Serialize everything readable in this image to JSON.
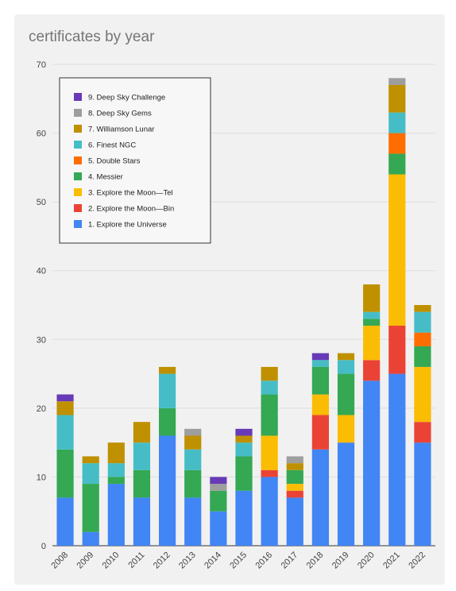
{
  "chart_data": {
    "type": "bar",
    "stacked": true,
    "title": "certificates by year",
    "xlabel": "",
    "ylabel": "",
    "ylim": [
      0,
      70
    ],
    "yticks": [
      0,
      10,
      20,
      30,
      40,
      50,
      60,
      70
    ],
    "grid": true,
    "legend_position": "top-left",
    "categories": [
      "2008",
      "2009",
      "2010",
      "2011",
      "2012",
      "2013",
      "2014",
      "2015",
      "2016",
      "2017",
      "2018",
      "2019",
      "2020",
      "2021",
      "2022"
    ],
    "series": [
      {
        "name": "1. Explore the Universe",
        "color": "#4285f4",
        "values": [
          7,
          2,
          9,
          7,
          16,
          7,
          5,
          8,
          10,
          7,
          14,
          15,
          24,
          25,
          15
        ]
      },
      {
        "name": "2. Explore the Moon—Bin",
        "color": "#ea4335",
        "values": [
          0,
          0,
          0,
          0,
          0,
          0,
          0,
          0,
          1,
          1,
          5,
          0,
          3,
          7,
          3
        ]
      },
      {
        "name": "3. Explore the Moon—Tel",
        "color": "#fbbc04",
        "values": [
          0,
          0,
          0,
          0,
          0,
          0,
          0,
          0,
          5,
          1,
          3,
          4,
          5,
          22,
          8
        ]
      },
      {
        "name": "4. Messier",
        "color": "#34a853",
        "values": [
          7,
          7,
          1,
          4,
          4,
          4,
          3,
          5,
          6,
          2,
          4,
          6,
          1,
          3,
          3
        ]
      },
      {
        "name": "5. Double Stars",
        "color": "#ff6d01",
        "values": [
          0,
          0,
          0,
          0,
          0,
          0,
          0,
          0,
          0,
          0,
          0,
          0,
          0,
          3,
          2
        ]
      },
      {
        "name": "6. Finest NGC",
        "color": "#46bdc6",
        "values": [
          5,
          3,
          2,
          4,
          5,
          3,
          0,
          2,
          2,
          0,
          1,
          2,
          1,
          3,
          3
        ]
      },
      {
        "name": "7. Williamson Lunar",
        "color": "#bf9000",
        "values": [
          2,
          1,
          3,
          3,
          1,
          2,
          0,
          1,
          2,
          1,
          0,
          1,
          4,
          4,
          1
        ]
      },
      {
        "name": "8. Deep Sky Gems",
        "color": "#9e9e9e",
        "values": [
          0,
          0,
          0,
          0,
          0,
          1,
          1,
          0,
          0,
          1,
          0,
          0,
          0,
          1,
          0
        ]
      },
      {
        "name": "9. Deep Sky Challenge",
        "color": "#673ab7",
        "values": [
          1,
          0,
          0,
          0,
          0,
          0,
          1,
          1,
          0,
          0,
          1,
          0,
          0,
          0,
          0
        ]
      }
    ]
  }
}
